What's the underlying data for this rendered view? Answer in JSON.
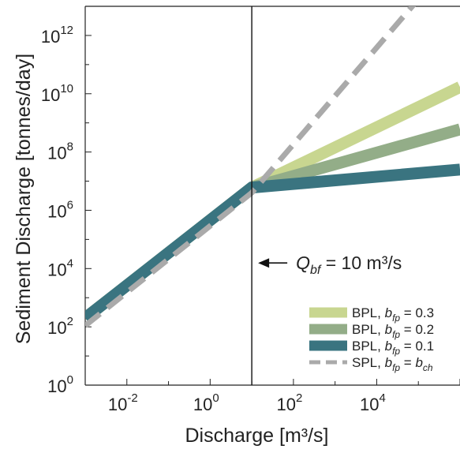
{
  "chart_data": {
    "type": "line",
    "xlabel": "Discharge [m³/s]",
    "ylabel": "Sediment Discharge [tonnes/day]",
    "xscale": "log",
    "yscale": "log",
    "xlim": [
      0.001,
      1000000
    ],
    "ylim": [
      1,
      10000000000000
    ],
    "grid": false,
    "legend_position": "bottom-right",
    "x_tick_labels": [
      "10-2",
      "100",
      "102",
      "104"
    ],
    "y_tick_labels": [
      "100",
      "102",
      "104",
      "106",
      "108",
      "1010",
      "1012"
    ],
    "series": [
      {
        "name": "BPL, b_fp = 0.3",
        "legend_label": {
          "prefix": "BPL, ",
          "var": "b",
          "sub": "fp",
          "rest": " = 0.3"
        },
        "color": "#c8d690",
        "points": [
          [
            0.001,
            200
          ],
          [
            10,
            6000000
          ],
          [
            1000000,
            17000000000
          ]
        ]
      },
      {
        "name": "BPL, b_fp = 0.2",
        "legend_label": {
          "prefix": "BPL, ",
          "var": "b",
          "sub": "fp",
          "rest": " = 0.2"
        },
        "color": "#93ad88",
        "points": [
          [
            0.001,
            200
          ],
          [
            10,
            6000000
          ],
          [
            1000000,
            600000000
          ]
        ]
      },
      {
        "name": "BPL, b_fp = 0.1",
        "legend_label": {
          "prefix": "BPL, ",
          "var": "b",
          "sub": "fp",
          "rest": " = 0.1"
        },
        "color": "#3a7480",
        "points": [
          [
            0.001,
            200
          ],
          [
            10,
            6000000
          ],
          [
            1000000,
            25000000
          ]
        ]
      },
      {
        "name": "SPL, b_fp = b_ch",
        "legend_label": {
          "prefix": "SPL, ",
          "var": "b",
          "sub": "fp",
          "rest": " = ",
          "var2": "b",
          "sub2": "ch"
        },
        "color": "#aaaaaa",
        "dashed": true,
        "points": [
          [
            0.001,
            110
          ],
          [
            10,
            4000000
          ],
          [
            1000000,
            800000000000000
          ]
        ]
      }
    ],
    "vertical_line": {
      "x": 10
    },
    "annotation": {
      "var": "Q",
      "sub": "bf",
      "text": " = 10 m³/s",
      "points_to_x": 10,
      "at_y": 20000
    }
  }
}
